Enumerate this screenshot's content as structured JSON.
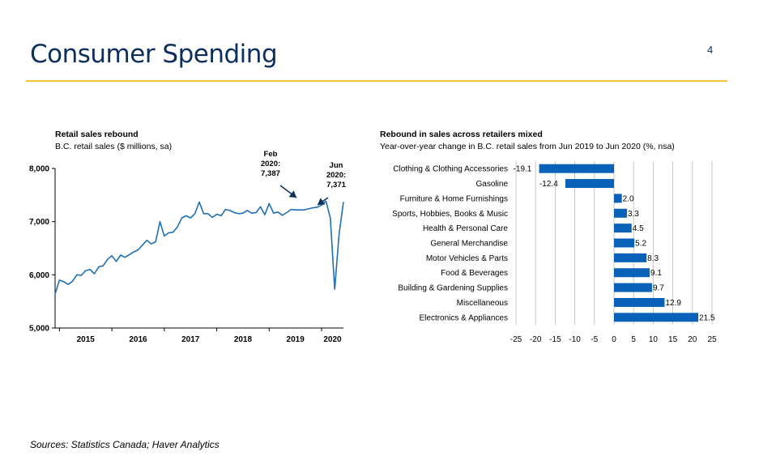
{
  "header": {
    "title": "Consumer Spending",
    "page_number": "4"
  },
  "footer": {
    "sources": "Sources: Statistics Canada; Haver Analytics"
  },
  "colors": {
    "title": "#0d2f5b",
    "rule": "#f5c33b",
    "line": "#1f6fb5",
    "bar": "#0a62b8"
  },
  "chart_data": [
    {
      "type": "line",
      "title": "Retail sales rebound",
      "subtitle": "B.C. retail sales ($ millions, sa)",
      "ylim": [
        5000,
        8000
      ],
      "yticks": [
        5000,
        6000,
        7000,
        8000
      ],
      "ytick_labels": [
        "5,000",
        "6,000",
        "7,000",
        "8,000"
      ],
      "xtick_labels": [
        "2015",
        "2016",
        "2017",
        "2018",
        "2019",
        "2020"
      ],
      "x_start": "2014-12",
      "x_end": "2020-06",
      "grid": false,
      "annotations": [
        {
          "text": [
            "Feb",
            "2020:",
            "7,387"
          ],
          "x": "2020-02",
          "y": 7387
        },
        {
          "text": [
            "Jun",
            "2020:",
            "7,371"
          ],
          "x": "2020-06",
          "y": 7371
        }
      ],
      "x": [
        "2014-12",
        "2015-01",
        "2015-02",
        "2015-03",
        "2015-04",
        "2015-05",
        "2015-06",
        "2015-07",
        "2015-08",
        "2015-09",
        "2015-10",
        "2015-11",
        "2015-12",
        "2016-01",
        "2016-02",
        "2016-03",
        "2016-04",
        "2016-05",
        "2016-06",
        "2016-07",
        "2016-08",
        "2016-09",
        "2016-10",
        "2016-11",
        "2016-12",
        "2017-01",
        "2017-02",
        "2017-03",
        "2017-04",
        "2017-05",
        "2017-06",
        "2017-07",
        "2017-08",
        "2017-09",
        "2017-10",
        "2017-11",
        "2017-12",
        "2018-01",
        "2018-02",
        "2018-03",
        "2018-04",
        "2018-05",
        "2018-06",
        "2018-07",
        "2018-08",
        "2018-09",
        "2018-10",
        "2018-11",
        "2018-12",
        "2019-01",
        "2019-02",
        "2019-03",
        "2019-04",
        "2019-05",
        "2019-06",
        "2019-07",
        "2019-08",
        "2019-09",
        "2019-10",
        "2019-11",
        "2019-12",
        "2020-01",
        "2020-02",
        "2020-03",
        "2020-04",
        "2020-05",
        "2020-06"
      ],
      "values": [
        5640,
        5900,
        5870,
        5820,
        5880,
        6000,
        5990,
        6080,
        6100,
        6020,
        6150,
        6170,
        6290,
        6360,
        6250,
        6370,
        6330,
        6380,
        6430,
        6470,
        6560,
        6650,
        6580,
        6620,
        7000,
        6730,
        6790,
        6800,
        6900,
        7070,
        7110,
        7070,
        7150,
        7370,
        7150,
        7150,
        7080,
        7140,
        7110,
        7230,
        7210,
        7170,
        7150,
        7160,
        7210,
        7160,
        7170,
        7280,
        7130,
        7340,
        7160,
        7180,
        7120,
        7170,
        7230,
        7220,
        7220,
        7220,
        7240,
        7260,
        7270,
        7310,
        7387,
        7070,
        5730,
        6760,
        7371
      ]
    },
    {
      "type": "bar",
      "orientation": "horizontal",
      "title": "Rebound in sales across retailers mixed",
      "subtitle": "Year-over-year change in B.C. retail sales from Jun 2019 to Jun 2020 (%, nsa)",
      "xlim": [
        -25,
        25
      ],
      "xticks": [
        -25,
        -20,
        -15,
        -10,
        -5,
        0,
        5,
        10,
        15,
        20,
        25
      ],
      "grid": true,
      "categories": [
        "Clothing & Clothing Accessories",
        "Gasoline",
        "Furniture & Home Furnishings",
        "Sports, Hobbies, Books & Music",
        "Health & Personal Care",
        "General Merchandise",
        "Motor Vehicles & Parts",
        "Food & Beverages",
        "Building & Gardening Supplies",
        "Miscellaneous",
        "Electronics & Appliances"
      ],
      "values": [
        -19.1,
        -12.4,
        2.0,
        3.3,
        4.5,
        5.2,
        8.3,
        9.1,
        9.7,
        12.9,
        21.5
      ],
      "value_labels": [
        "-19.1",
        "-12.4",
        "2.0",
        "3.3",
        "4.5",
        "5.2",
        "8.3",
        "9.1",
        "9.7",
        "12.9",
        "21.5"
      ]
    }
  ]
}
